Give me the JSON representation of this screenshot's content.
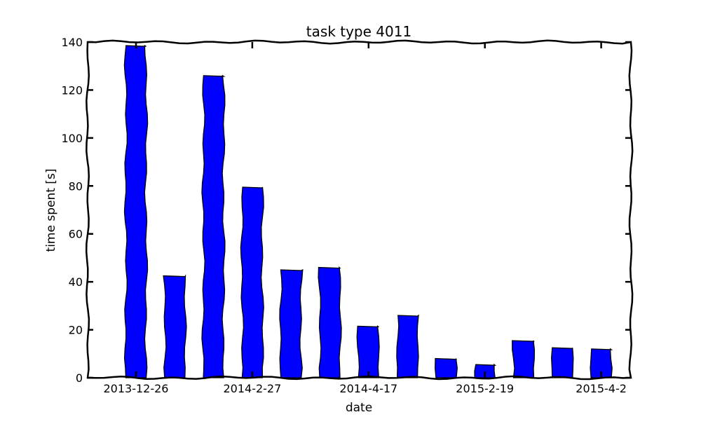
{
  "chart_data": {
    "type": "bar",
    "title": "task type 4011",
    "xlabel": "date",
    "ylabel": "time spent [s]",
    "ylim": [
      0,
      140
    ],
    "yticks": [
      0,
      20,
      40,
      60,
      80,
      100,
      120,
      140
    ],
    "xtick_labels": [
      {
        "index": 0,
        "label": "2013-12-26"
      },
      {
        "index": 3,
        "label": "2014-2-27"
      },
      {
        "index": 6,
        "label": "2014-4-17"
      },
      {
        "index": 9,
        "label": "2015-2-19"
      },
      {
        "index": 12,
        "label": "2015-4-2"
      }
    ],
    "values": [
      138.5,
      42.5,
      126,
      79.5,
      45,
      46,
      21.5,
      26,
      8,
      5.5,
      15.5,
      12.5,
      12
    ],
    "bar_color": "#0000ff",
    "grid": false
  }
}
